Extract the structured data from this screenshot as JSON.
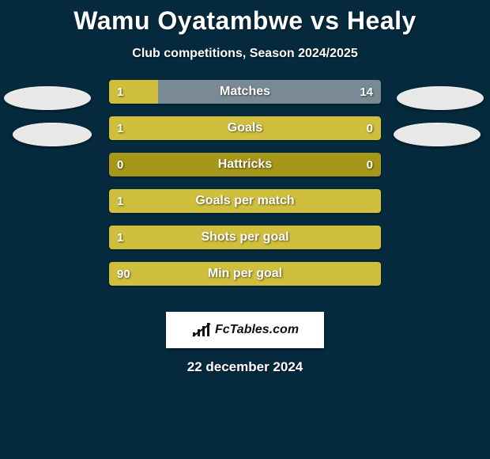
{
  "title": "Wamu Oyatambwe vs Healy",
  "subtitle": "Club competitions, Season 2024/2025",
  "date": "22 december 2024",
  "logo_text": "FcTables.com",
  "colors": {
    "background": "#052a3e",
    "bar_outer": "#a79719",
    "bar_inner": "#cfbf3d",
    "bar_grey": "#7a8a94",
    "text": "#ffffff",
    "blob": "#e8e8e8"
  },
  "rows": [
    {
      "label": "Matches",
      "left_value": "1",
      "right_value": "14",
      "left_pct": 18,
      "right_pct": 0,
      "show_right_value": true,
      "right_grey": true
    },
    {
      "label": "Goals",
      "left_value": "1",
      "right_value": "0",
      "left_pct": 77,
      "right_pct": 23,
      "show_right_value": true,
      "right_grey": false
    },
    {
      "label": "Hattricks",
      "left_value": "0",
      "right_value": "0",
      "left_pct": 0,
      "right_pct": 0,
      "show_right_value": true,
      "right_grey": false
    },
    {
      "label": "Goals per match",
      "left_value": "1",
      "right_value": "",
      "left_pct": 100,
      "right_pct": 0,
      "show_right_value": false,
      "right_grey": false
    },
    {
      "label": "Shots per goal",
      "left_value": "1",
      "right_value": "",
      "left_pct": 100,
      "right_pct": 0,
      "show_right_value": false,
      "right_grey": false
    },
    {
      "label": "Min per goal",
      "left_value": "90",
      "right_value": "",
      "left_pct": 100,
      "right_pct": 0,
      "show_right_value": false,
      "right_grey": false
    }
  ]
}
